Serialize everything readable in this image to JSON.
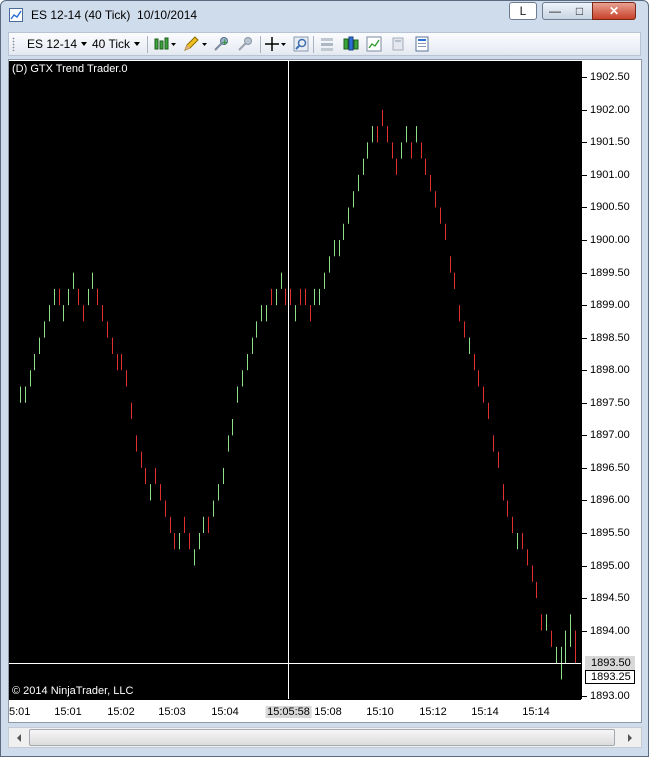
{
  "window": {
    "title": "ES 12-14 (40 Tick)  10/10/2014",
    "l_button": "L",
    "minimize": "—",
    "maximize": "□",
    "close": "✕"
  },
  "toolbar": {
    "instrument": "ES 12-14",
    "interval": "40 Tick",
    "icons": [
      "bar-type-icon",
      "drawing-pencil-icon",
      "add-indicator-icon",
      "remove-indicator-icon",
      "crosshair-icon",
      "zoom-icon",
      "chart-properties-icon",
      "strategies-icon",
      "performance-icon",
      "data-box-icon",
      "templates-icon"
    ]
  },
  "chart": {
    "indicator_label": "(D) GTX Trend Trader.0",
    "copyright": "© 2014 NinjaTrader, LLC",
    "up_color": "#8ee08a",
    "down_color": "#e03030",
    "crosshair_color": "#ffffff",
    "crosshair_price": "1893.50",
    "crosshair_time": "15:05:58",
    "last_price": "1893.25",
    "y_labels": [
      "1902.50",
      "1902.00",
      "1901.50",
      "1901.00",
      "1900.50",
      "1900.00",
      "1899.50",
      "1899.00",
      "1898.50",
      "1898.00",
      "1897.50",
      "1897.00",
      "1896.50",
      "1896.00",
      "1895.50",
      "1895.00",
      "1894.50",
      "1894.00",
      "1893.00"
    ],
    "x_labels": [
      "5:01",
      "15:01",
      "15:02",
      "15:03",
      "15:04",
      "15:08",
      "15:10",
      "15:12",
      "15:14",
      "15:14"
    ]
  },
  "chart_data": {
    "type": "line",
    "ylim": [
      1892.95,
      1902.75
    ],
    "bars": [
      [
        1897.75,
        1897.5,
        1
      ],
      [
        1897.75,
        1897.5,
        1
      ],
      [
        1898.0,
        1897.75,
        1
      ],
      [
        1898.25,
        1898.0,
        1
      ],
      [
        1898.5,
        1898.25,
        1
      ],
      [
        1898.75,
        1898.5,
        1
      ],
      [
        1899.0,
        1898.75,
        1
      ],
      [
        1899.25,
        1899.0,
        1
      ],
      [
        1899.25,
        1899.0,
        0
      ],
      [
        1899.0,
        1898.75,
        1
      ],
      [
        1899.25,
        1899.0,
        1
      ],
      [
        1899.5,
        1899.25,
        1
      ],
      [
        1899.25,
        1899.0,
        0
      ],
      [
        1899.0,
        1898.75,
        0
      ],
      [
        1899.25,
        1899.0,
        1
      ],
      [
        1899.5,
        1899.25,
        1
      ],
      [
        1899.25,
        1899.0,
        0
      ],
      [
        1899.0,
        1898.75,
        0
      ],
      [
        1898.75,
        1898.5,
        0
      ],
      [
        1898.5,
        1898.25,
        0
      ],
      [
        1898.25,
        1898.0,
        0
      ],
      [
        1898.25,
        1898.0,
        0
      ],
      [
        1898.0,
        1897.75,
        0
      ],
      [
        1897.5,
        1897.25,
        0
      ],
      [
        1897.0,
        1896.75,
        0
      ],
      [
        1896.75,
        1896.5,
        0
      ],
      [
        1896.5,
        1896.25,
        0
      ],
      [
        1896.25,
        1896.0,
        1
      ],
      [
        1896.5,
        1896.25,
        0
      ],
      [
        1896.25,
        1896.0,
        0
      ],
      [
        1896.0,
        1895.75,
        0
      ],
      [
        1895.75,
        1895.5,
        0
      ],
      [
        1895.5,
        1895.25,
        0
      ],
      [
        1895.5,
        1895.25,
        1
      ],
      [
        1895.75,
        1895.5,
        0
      ],
      [
        1895.5,
        1895.25,
        0
      ],
      [
        1895.25,
        1895.0,
        1
      ],
      [
        1895.5,
        1895.25,
        1
      ],
      [
        1895.75,
        1895.5,
        1
      ],
      [
        1895.75,
        1895.5,
        0
      ],
      [
        1896.0,
        1895.75,
        1
      ],
      [
        1896.25,
        1896.0,
        1
      ],
      [
        1896.5,
        1896.25,
        1
      ],
      [
        1897.0,
        1896.75,
        1
      ],
      [
        1897.25,
        1897.0,
        1
      ],
      [
        1897.75,
        1897.5,
        1
      ],
      [
        1898.0,
        1897.75,
        1
      ],
      [
        1898.25,
        1898.0,
        1
      ],
      [
        1898.5,
        1898.25,
        1
      ],
      [
        1898.75,
        1898.5,
        1
      ],
      [
        1899.0,
        1898.75,
        1
      ],
      [
        1899.0,
        1898.75,
        1
      ],
      [
        1899.25,
        1899.0,
        0
      ],
      [
        1899.25,
        1899.0,
        1
      ],
      [
        1899.5,
        1899.25,
        1
      ],
      [
        1899.25,
        1899.0,
        0
      ],
      [
        1899.25,
        1899.0,
        0
      ],
      [
        1899.0,
        1898.75,
        1
      ],
      [
        1899.25,
        1899.0,
        0
      ],
      [
        1899.25,
        1899.0,
        0
      ],
      [
        1899.0,
        1898.75,
        0
      ],
      [
        1899.25,
        1899.0,
        1
      ],
      [
        1899.25,
        1899.0,
        1
      ],
      [
        1899.5,
        1899.25,
        1
      ],
      [
        1899.75,
        1899.5,
        1
      ],
      [
        1900.0,
        1899.75,
        1
      ],
      [
        1900.0,
        1899.75,
        1
      ],
      [
        1900.25,
        1900.0,
        1
      ],
      [
        1900.5,
        1900.25,
        1
      ],
      [
        1900.75,
        1900.5,
        1
      ],
      [
        1901.0,
        1900.75,
        1
      ],
      [
        1901.25,
        1901.0,
        1
      ],
      [
        1901.5,
        1901.25,
        1
      ],
      [
        1901.75,
        1901.5,
        1
      ],
      [
        1901.75,
        1901.5,
        0
      ],
      [
        1902.0,
        1901.75,
        0
      ],
      [
        1901.75,
        1901.5,
        0
      ],
      [
        1901.5,
        1901.25,
        0
      ],
      [
        1901.25,
        1901.0,
        0
      ],
      [
        1901.5,
        1901.25,
        1
      ],
      [
        1901.75,
        1901.5,
        1
      ],
      [
        1901.5,
        1901.25,
        0
      ],
      [
        1901.75,
        1901.5,
        1
      ],
      [
        1901.5,
        1901.25,
        0
      ],
      [
        1901.25,
        1901.0,
        0
      ],
      [
        1901.0,
        1900.75,
        0
      ],
      [
        1900.75,
        1900.5,
        0
      ],
      [
        1900.5,
        1900.25,
        0
      ],
      [
        1900.25,
        1900.0,
        0
      ],
      [
        1899.75,
        1899.5,
        0
      ],
      [
        1899.5,
        1899.25,
        0
      ],
      [
        1899.0,
        1898.75,
        0
      ],
      [
        1898.75,
        1898.5,
        0
      ],
      [
        1898.5,
        1898.25,
        1
      ],
      [
        1898.25,
        1898.0,
        0
      ],
      [
        1898.0,
        1897.75,
        0
      ],
      [
        1897.75,
        1897.5,
        0
      ],
      [
        1897.5,
        1897.25,
        0
      ],
      [
        1897.0,
        1896.75,
        0
      ],
      [
        1896.75,
        1896.5,
        0
      ],
      [
        1896.25,
        1896.0,
        0
      ],
      [
        1896.0,
        1895.75,
        0
      ],
      [
        1895.75,
        1895.5,
        0
      ],
      [
        1895.5,
        1895.25,
        1
      ],
      [
        1895.5,
        1895.25,
        0
      ],
      [
        1895.25,
        1895.0,
        0
      ],
      [
        1895.0,
        1894.75,
        0
      ],
      [
        1894.75,
        1894.5,
        0
      ],
      [
        1894.25,
        1894.0,
        0
      ],
      [
        1894.25,
        1894.0,
        1
      ],
      [
        1894.0,
        1893.75,
        0
      ],
      [
        1893.75,
        1893.5,
        1
      ],
      [
        1893.75,
        1893.25,
        1
      ],
      [
        1894.0,
        1893.5,
        1
      ],
      [
        1894.25,
        1893.75,
        1
      ],
      [
        1894.0,
        1893.5,
        0
      ]
    ]
  }
}
